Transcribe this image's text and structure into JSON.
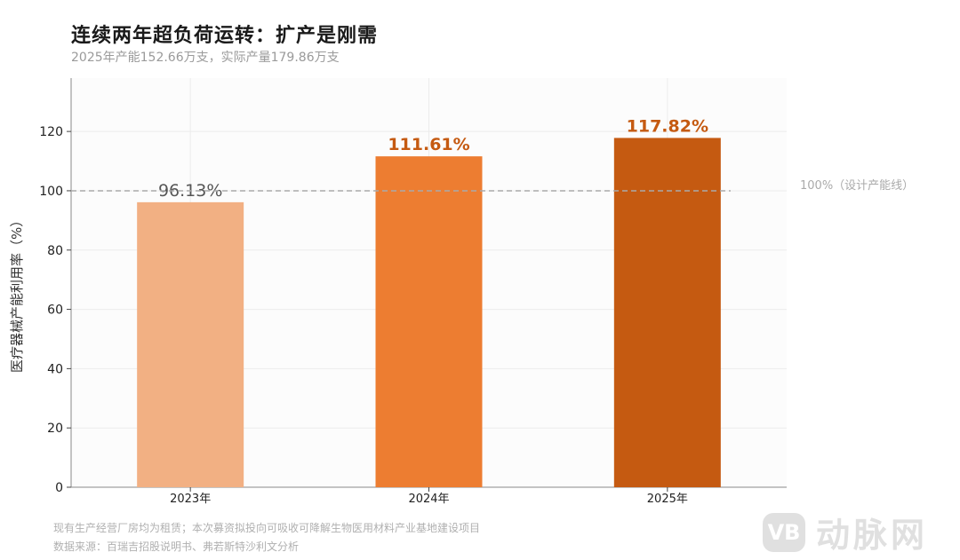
{
  "chart_data": {
    "type": "bar",
    "title": "连续两年超负荷运转：扩产是刚需",
    "subtitle": "2025年产能152.66万支，实际产量179.86万支",
    "ylabel": "医疗器械产能利用率（%）",
    "xlabel": "",
    "categories": [
      "2023年",
      "2024年",
      "2025年"
    ],
    "values": [
      96.13,
      111.61,
      117.82
    ],
    "value_labels": [
      "96.13%",
      "111.61%",
      "117.82%"
    ],
    "bar_colors": [
      "#F2B083",
      "#ED7D31",
      "#C55A11"
    ],
    "label_colors": [
      "#555555",
      "#C55A11",
      "#C55A11"
    ],
    "ylim": [
      0,
      138
    ],
    "yticks": [
      0,
      20,
      40,
      60,
      80,
      100,
      120
    ],
    "grid": true,
    "reference_line": {
      "value": 100,
      "label": "100%（设计产能线）",
      "color": "#aaaaaa",
      "style": "dashed"
    }
  },
  "footnotes": [
    "现有生产经营厂房均为租赁；本次募资拟投向可吸收可降解生物医用材料产业基地建设项目",
    "数据来源：百瑞吉招股说明书、弗若斯特沙利文分析"
  ],
  "watermark": {
    "logo": "VB",
    "text": "动脉网"
  }
}
